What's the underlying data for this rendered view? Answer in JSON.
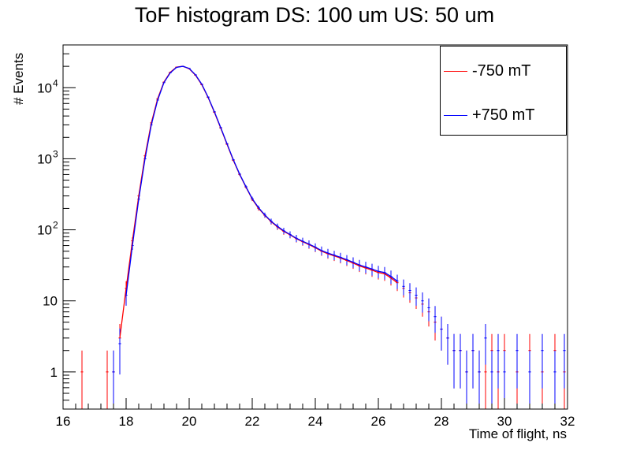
{
  "title": "ToF histogram DS: 100 um US: 50 um",
  "chart_data": {
    "type": "line",
    "title": "ToF histogram DS: 100 um US: 50 um",
    "xlabel": "Time of flight, ns",
    "ylabel": "# Events",
    "xlim": [
      16,
      32
    ],
    "ylim": [
      0.3,
      40000
    ],
    "y_scale": "log",
    "x_ticks": [
      "16",
      "18",
      "20",
      "22",
      "24",
      "26",
      "28",
      "30",
      "32"
    ],
    "y_ticks": [
      {
        "value": 1,
        "label": "1"
      },
      {
        "value": 10,
        "label": "10"
      },
      {
        "value": 100,
        "label": "10",
        "exp": "2"
      },
      {
        "value": 1000,
        "label": "10",
        "exp": "3"
      },
      {
        "value": 10000,
        "label": "10",
        "exp": "4"
      }
    ],
    "legend_position": "top-right",
    "series": [
      {
        "name": "-750 mT",
        "color": "#ff0000",
        "x": [
          16.6,
          17.4,
          17.6,
          17.8,
          18.0,
          18.2,
          18.4,
          18.6,
          18.8,
          19.0,
          19.2,
          19.4,
          19.6,
          19.8,
          20.0,
          20.2,
          20.4,
          20.6,
          20.8,
          21.0,
          21.2,
          21.4,
          21.6,
          21.8,
          22.0,
          22.2,
          22.4,
          22.6,
          22.8,
          23.0,
          23.2,
          23.4,
          23.6,
          23.8,
          24.0,
          24.2,
          24.4,
          24.6,
          24.8,
          25.0,
          25.2,
          25.4,
          25.6,
          25.8,
          26.0,
          26.2,
          26.4,
          26.6,
          26.8,
          27.0,
          27.2,
          27.4,
          27.6,
          27.8,
          28.0,
          28.2,
          28.4,
          28.6,
          28.8,
          29.0,
          29.2,
          29.4,
          29.6,
          29.8,
          30.0,
          30.4,
          30.8,
          31.2,
          31.6,
          31.9
        ],
        "values": [
          1,
          1,
          1,
          3,
          15,
          70,
          300,
          1100,
          3200,
          7000,
          12000,
          16500,
          19500,
          20000,
          18500,
          15000,
          11000,
          7300,
          4500,
          2700,
          1600,
          950,
          600,
          400,
          270,
          200,
          160,
          130,
          110,
          95,
          85,
          75,
          68,
          62,
          56,
          50,
          46,
          43,
          40,
          37,
          34,
          31,
          29,
          27,
          25,
          24,
          21,
          18,
          15,
          13,
          11,
          9,
          7,
          5,
          4,
          3,
          2,
          2,
          1,
          2,
          1,
          1,
          2,
          1,
          2,
          1,
          2,
          1,
          2,
          1
        ]
      },
      {
        "name": "+750 mT",
        "color": "#0000ff",
        "x": [
          17.6,
          17.8,
          18.0,
          18.2,
          18.4,
          18.6,
          18.8,
          19.0,
          19.2,
          19.4,
          19.6,
          19.8,
          20.0,
          20.2,
          20.4,
          20.6,
          20.8,
          21.0,
          21.2,
          21.4,
          21.6,
          21.8,
          22.0,
          22.2,
          22.4,
          22.6,
          22.8,
          23.0,
          23.2,
          23.4,
          23.6,
          23.8,
          24.0,
          24.2,
          24.4,
          24.6,
          24.8,
          25.0,
          25.2,
          25.4,
          25.6,
          25.8,
          26.0,
          26.2,
          26.4,
          26.6,
          26.8,
          27.0,
          27.2,
          27.4,
          27.6,
          27.8,
          28.0,
          28.2,
          28.4,
          28.6,
          28.8,
          29.0,
          29.2,
          29.4,
          29.6,
          29.8,
          30.0,
          30.4,
          30.8,
          31.2,
          31.6,
          31.9
        ],
        "values": [
          1,
          2.5,
          12,
          60,
          270,
          1000,
          3000,
          6700,
          11800,
          16200,
          19300,
          20000,
          18700,
          15200,
          11200,
          7400,
          4600,
          2750,
          1630,
          970,
          610,
          405,
          275,
          205,
          162,
          132,
          112,
          97,
          86,
          76,
          69,
          63,
          57,
          51,
          47,
          44,
          41,
          38,
          35,
          32,
          30,
          28,
          26,
          25,
          22,
          19,
          16,
          14,
          12,
          10,
          8,
          6,
          4,
          3,
          2,
          2,
          1,
          2,
          1,
          3,
          1,
          2,
          1,
          2,
          1,
          2,
          1,
          2
        ]
      }
    ]
  }
}
